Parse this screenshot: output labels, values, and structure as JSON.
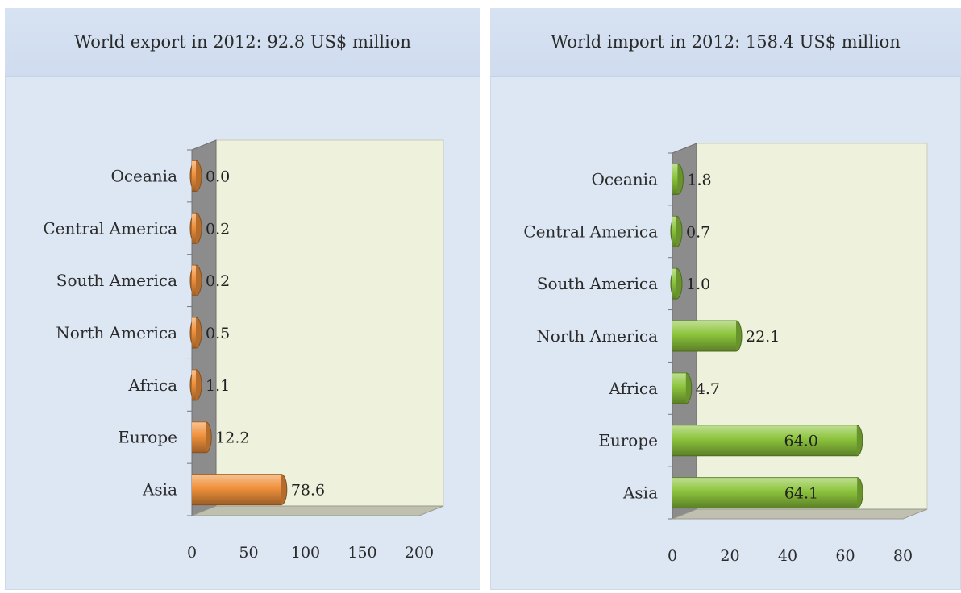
{
  "chart_data": [
    {
      "type": "bar",
      "orientation": "horizontal",
      "title": "World export in 2012: 92.8 US$ million",
      "categories": [
        "Asia",
        "Europe",
        "Africa",
        "North America",
        "South America",
        "Central America",
        "Oceania"
      ],
      "values": [
        78.6,
        12.2,
        1.1,
        0.5,
        0.2,
        0.2,
        0.0
      ],
      "value_labels": [
        "78.6",
        "12.2",
        "1.1",
        "0.5",
        "0.2",
        "0.2",
        "0.0"
      ],
      "xlim": [
        0,
        200
      ],
      "xticks": [
        0,
        50,
        100,
        150,
        200
      ],
      "grid": false,
      "legend": "none",
      "color": "#f0913c"
    },
    {
      "type": "bar",
      "orientation": "horizontal",
      "title": "World import in 2012: 158.4 US$ million",
      "categories": [
        "Asia",
        "Europe",
        "Africa",
        "North America",
        "South America",
        "Central America",
        "Oceania"
      ],
      "values": [
        64.1,
        64.0,
        4.7,
        22.1,
        1.0,
        0.7,
        1.8
      ],
      "value_labels": [
        "64.1",
        "64.0",
        "4.7",
        "22.1",
        "1.0",
        "0.7",
        "1.8"
      ],
      "xlim": [
        0,
        80
      ],
      "xticks": [
        0,
        20,
        40,
        60,
        80
      ],
      "grid": false,
      "legend": "none",
      "color": "#8cc43c"
    }
  ]
}
